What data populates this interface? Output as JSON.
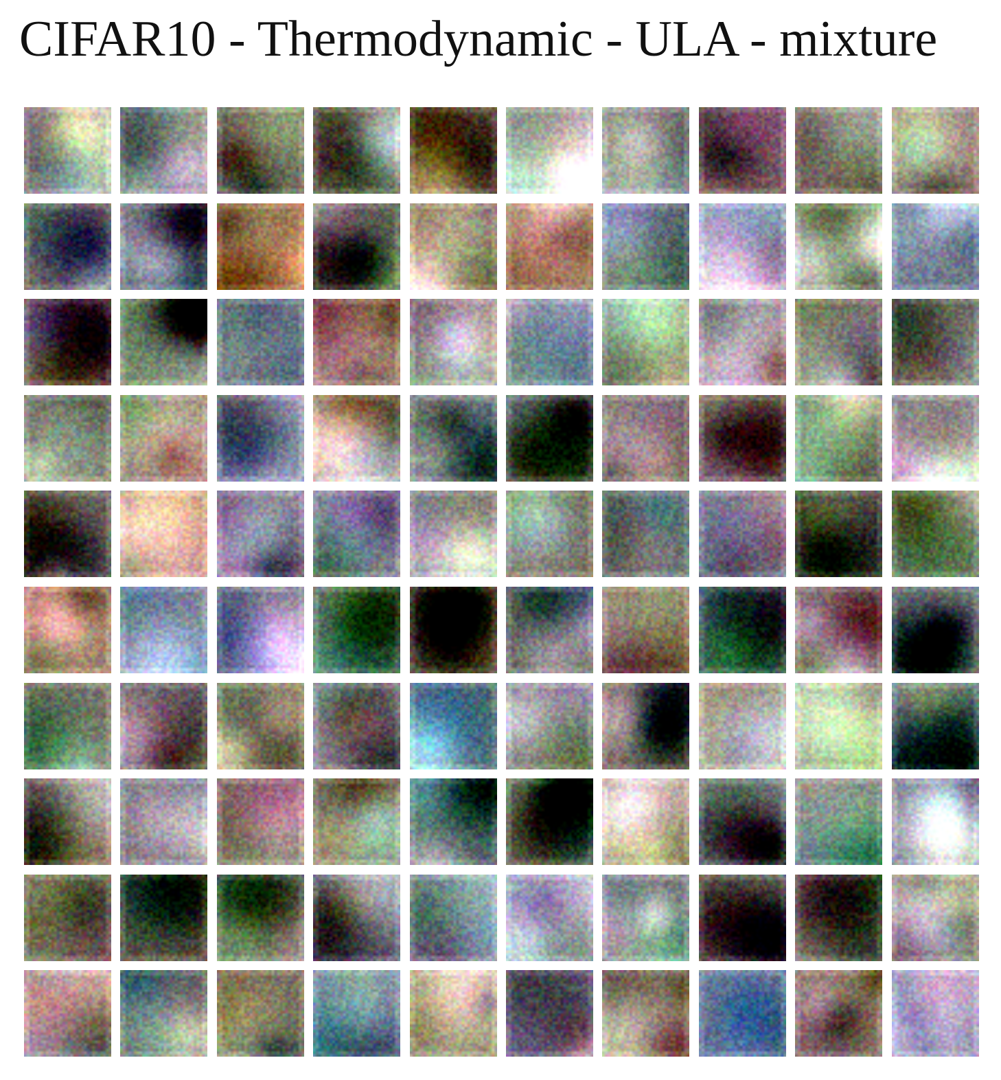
{
  "title": "CIFAR10 - Thermodynamic - ULA - mixture",
  "grid": {
    "rows": 10,
    "cols": 10,
    "tiles": [
      [
        "#8a7d80",
        "#7e7e88",
        "#6e6c56",
        "#6a6152",
        "#5a4a3a",
        "#8c9488",
        "#8a8e9c",
        "#6e5a55",
        "#7a6c66",
        "#8c7a74"
      ],
      [
        "#7a786c",
        "#6e7080",
        "#a07a50",
        "#5e6658",
        "#8a6e56",
        "#9a8262",
        "#62667a",
        "#9aa2b2",
        "#8a9476",
        "#6a7888"
      ],
      [
        "#7e6a6e",
        "#7a9070",
        "#5e6670",
        "#8a6e5a",
        "#8a7e7a",
        "#6a7a80",
        "#5a6256",
        "#8a7e80",
        "#786a5e",
        "#6a6e62"
      ],
      [
        "#6e6a62",
        "#6a645e",
        "#9a98a8",
        "#6e6656",
        "#8a8494",
        "#7e8090",
        "#6e6e5e",
        "#7e7468",
        "#6a7a6a",
        "#8a8c8c"
      ],
      [
        "#6e6a5e",
        "#8a7a62",
        "#8a8498",
        "#8a8a96",
        "#7a7e84",
        "#7a705e",
        "#7a7e82",
        "#82848e",
        "#5e5a52",
        "#7a7e70"
      ],
      [
        "#a07e62",
        "#7a8292",
        "#6e7680",
        "#6a8470",
        "#7a6a62",
        "#5e6662",
        "#8a7062",
        "#6a6e80",
        "#826e66",
        "#6e7478"
      ],
      [
        "#7a786e",
        "#6e6a6a",
        "#8a8266",
        "#8a7e90",
        "#5e6e70",
        "#7e7474",
        "#6e5e58",
        "#a4a48a",
        "#8e8a80",
        "#7a8488"
      ],
      [
        "#7e6e62",
        "#7e7a7e",
        "#8a8670",
        "#7e7262",
        "#5e6e6e",
        "#8a9480",
        "#8a7e74",
        "#7a8a88",
        "#7a848a",
        "#7a7888"
      ],
      [
        "#7e7262",
        "#5e5446",
        "#6e7468",
        "#6e6a7a",
        "#8a8e94",
        "#7a8880",
        "#7e7e86",
        "#6e7868",
        "#5e5e54",
        "#7e7662"
      ],
      [
        "#8a8088",
        "#5e605a",
        "#7a6e62",
        "#7a84a0",
        "#8a8a66",
        "#6e6680",
        "#8a7464",
        "#6e7a90",
        "#8a7e64",
        "#8a8aa0"
      ]
    ]
  }
}
